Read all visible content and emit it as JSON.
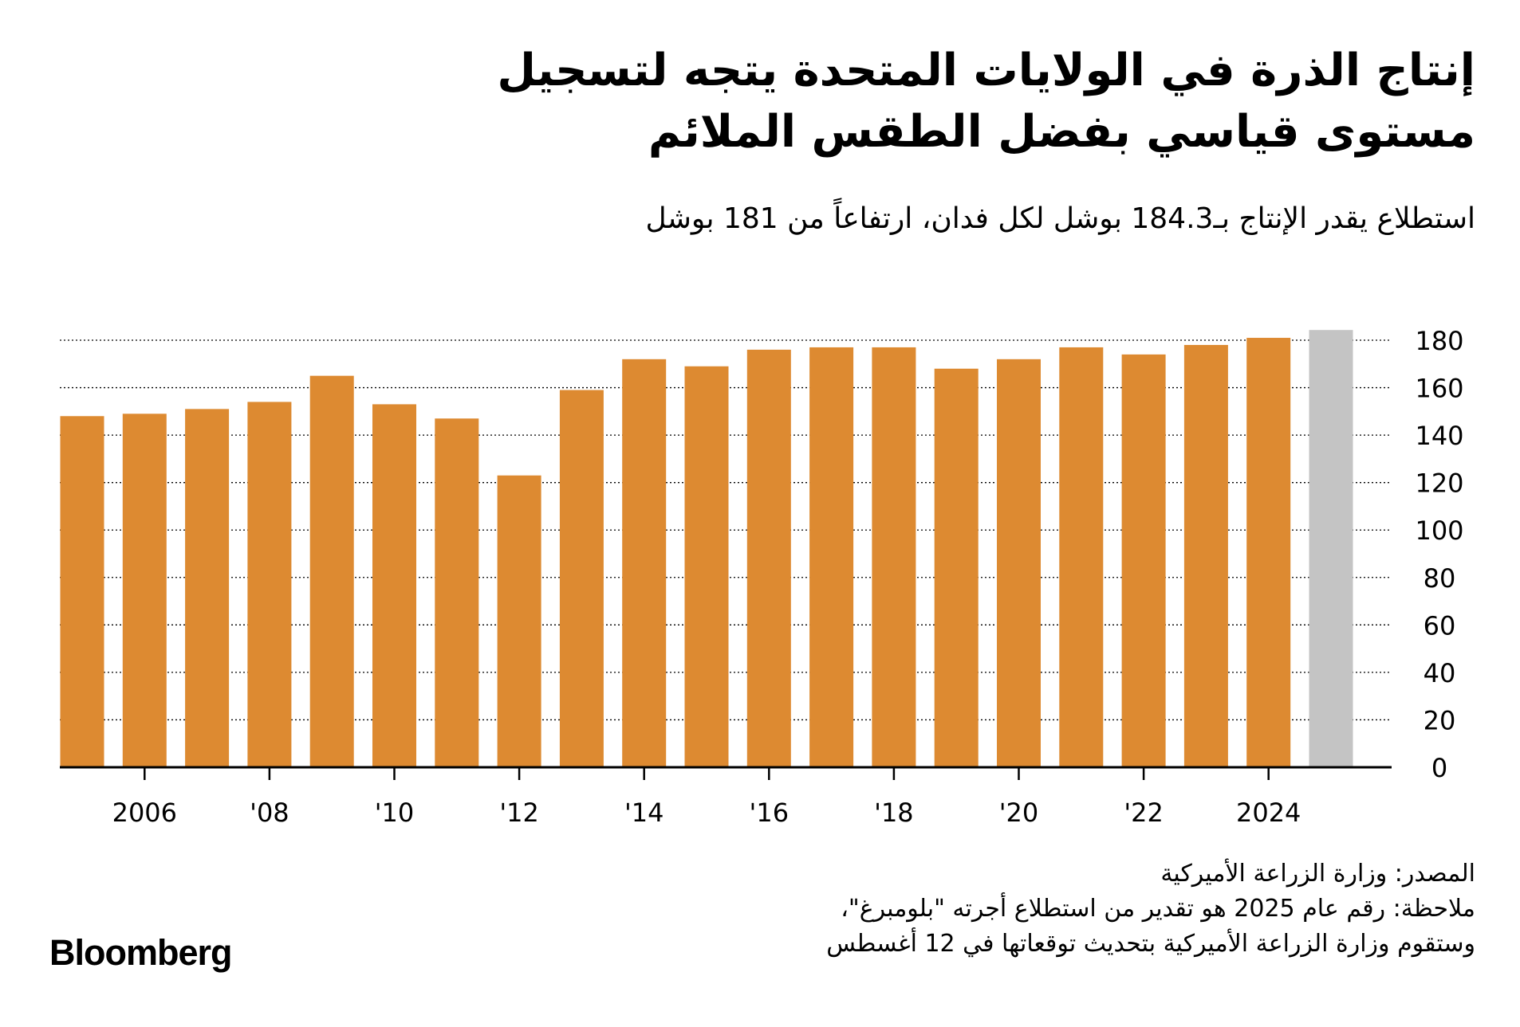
{
  "header": {
    "title_line1": "إنتاج الذرة في الولايات المتحدة يتجه لتسجيل",
    "title_line2": "مستوى قياسي بفضل الطقس الملائم",
    "subtitle": "استطلاع يقدر الإنتاج بـ184.3 بوشل لكل فدان، ارتفاعاً من 181 بوشل"
  },
  "footer": {
    "source": "المصدر: وزارة الزراعة الأميركية",
    "note_line1": "ملاحظة: رقم عام 2025 هو تقدير من استطلاع أجرته \"بلومبرغ\"،",
    "note_line2": "وستقوم وزارة الزراعة الأميركية بتحديث توقعاتها في 12 أغسطس",
    "logo": "Bloomberg"
  },
  "chart_data": {
    "type": "bar",
    "title": "",
    "xlabel": "",
    "ylabel": "",
    "x": [
      2005,
      2006,
      2007,
      2008,
      2009,
      2010,
      2011,
      2012,
      2013,
      2014,
      2015,
      2016,
      2017,
      2018,
      2019,
      2020,
      2021,
      2022,
      2023,
      2024,
      2025
    ],
    "values": [
      148,
      149,
      151,
      154,
      165,
      153,
      147,
      123,
      159,
      172,
      169,
      176,
      177,
      177,
      168,
      172,
      177,
      174,
      178,
      181,
      184.3
    ],
    "highlight": {
      "x": 2025,
      "color": "#c4c4c4",
      "note": "estimate"
    },
    "bar_color": "#dd8a31",
    "ylim": [
      0,
      180
    ],
    "y_ticks": [
      0,
      20,
      40,
      60,
      80,
      100,
      120,
      140,
      160,
      180
    ],
    "y_axis_side": "right",
    "grid": "dotted horizontal",
    "x_ticks": [
      {
        "x": 2006,
        "label": "2006"
      },
      {
        "x": 2008,
        "label": "'08"
      },
      {
        "x": 2010,
        "label": "'10"
      },
      {
        "x": 2012,
        "label": "'12"
      },
      {
        "x": 2014,
        "label": "'14"
      },
      {
        "x": 2016,
        "label": "'16"
      },
      {
        "x": 2018,
        "label": "'18"
      },
      {
        "x": 2020,
        "label": "'20"
      },
      {
        "x": 2022,
        "label": "'22"
      },
      {
        "x": 2024,
        "label": "2024"
      }
    ]
  }
}
